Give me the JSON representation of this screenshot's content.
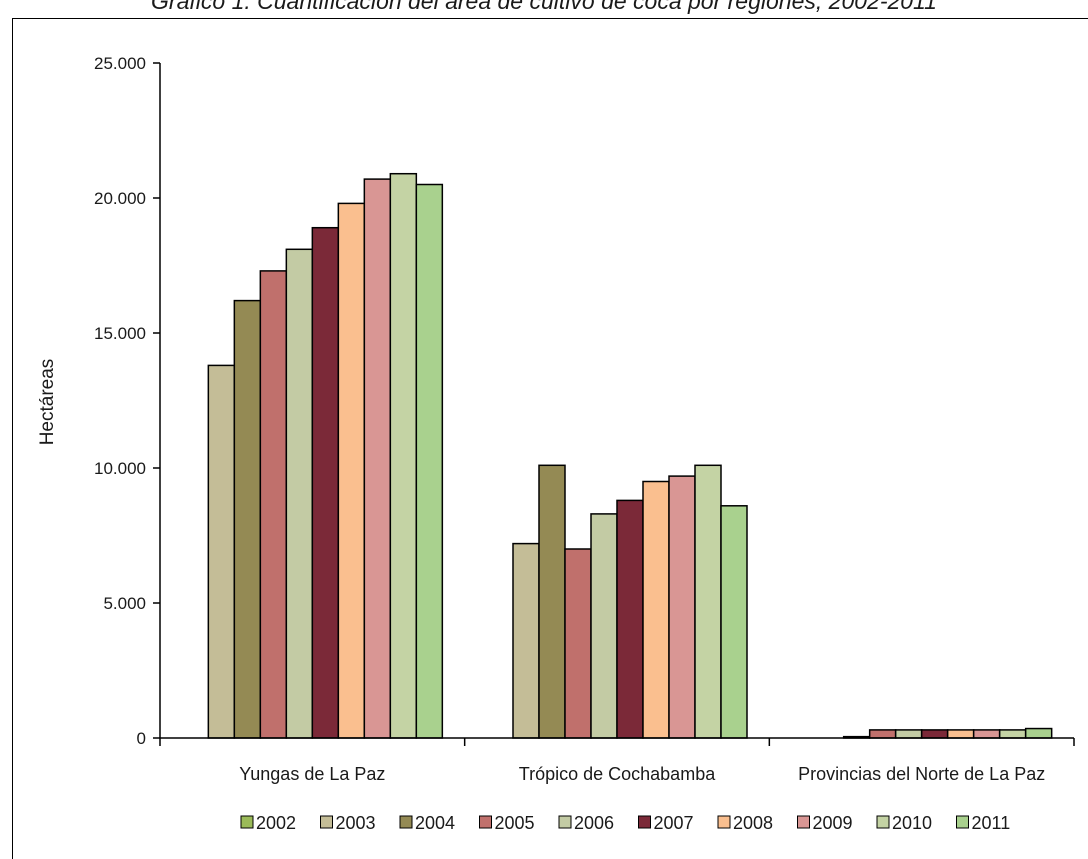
{
  "chart_data": {
    "type": "bar",
    "title": "Gráfico 1. Cuantificación del área de cultivo de coca por regiones, 2002-2011",
    "xlabel": "",
    "ylabel": "Hectáreas",
    "ylim": [
      0,
      25000
    ],
    "yticks": [
      0,
      5000,
      10000,
      15000,
      20000,
      25000
    ],
    "ytick_labels": [
      "0",
      "5.000",
      "10.000",
      "15.000",
      "20.000",
      "25.000"
    ],
    "categories": [
      "Yungas de La Paz",
      "Trópico de Cochabamba",
      "Provincias del Norte de La Paz"
    ],
    "series": [
      {
        "name": "2002",
        "color": "#9bbb59",
        "values": [
          null,
          null,
          null
        ]
      },
      {
        "name": "2003",
        "color": "#c4bd97",
        "values": [
          13800,
          7200,
          null
        ]
      },
      {
        "name": "2004",
        "color": "#948a54",
        "values": [
          16200,
          10100,
          50
        ]
      },
      {
        "name": "2005",
        "color": "#c0706c",
        "values": [
          17300,
          7000,
          300
        ]
      },
      {
        "name": "2006",
        "color": "#c3cba4",
        "values": [
          18100,
          8300,
          300
        ]
      },
      {
        "name": "2007",
        "color": "#7b2938",
        "values": [
          18900,
          8800,
          300
        ]
      },
      {
        "name": "2008",
        "color": "#fabf8f",
        "values": [
          19800,
          9500,
          300
        ]
      },
      {
        "name": "2009",
        "color": "#d99694",
        "values": [
          20700,
          9700,
          300
        ]
      },
      {
        "name": "2010",
        "color": "#c4d3a4",
        "values": [
          20900,
          10100,
          300
        ]
      },
      {
        "name": "2011",
        "color": "#a9d18e",
        "values": [
          20500,
          8600,
          350
        ]
      }
    ],
    "legend_position": "bottom",
    "grid": false
  }
}
